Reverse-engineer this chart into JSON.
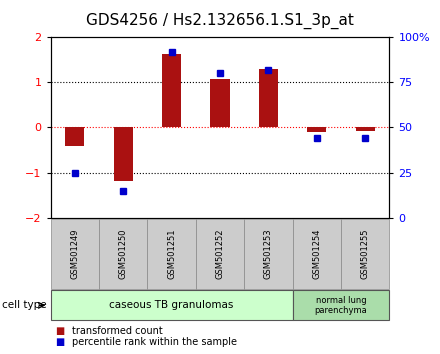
{
  "title": "GDS4256 / Hs2.132656.1.S1_3p_at",
  "samples": [
    "GSM501249",
    "GSM501250",
    "GSM501251",
    "GSM501252",
    "GSM501253",
    "GSM501254",
    "GSM501255"
  ],
  "transformed_counts": [
    -0.42,
    -1.18,
    1.62,
    1.08,
    1.3,
    -0.1,
    -0.07
  ],
  "percentile_ranks": [
    25,
    15,
    92,
    80,
    82,
    44,
    44
  ],
  "bar_color": "#aa1111",
  "dot_color": "#0000cc",
  "ylim_left": [
    -2,
    2
  ],
  "ylim_right": [
    0,
    100
  ],
  "yticks_left": [
    -2,
    -1,
    0,
    1,
    2
  ],
  "yticks_right": [
    0,
    25,
    50,
    75,
    100
  ],
  "yticklabels_right": [
    "0",
    "25",
    "50",
    "75",
    "100%"
  ],
  "group1_n": 5,
  "group2_n": 2,
  "group1_label": "caseous TB granulomas",
  "group2_label": "normal lung\nparenchyma",
  "group1_color": "#ccffcc",
  "group2_color": "#aaddaa",
  "cell_type_label": "cell type",
  "legend_bar_label": "transformed count",
  "legend_dot_label": "percentile rank within the sample",
  "bg_color": "#ffffff",
  "plot_bg": "#ffffff",
  "title_fontsize": 11,
  "tick_fontsize": 8,
  "label_fontsize": 7,
  "xlabels_bg": "#cccccc",
  "bar_width": 0.4
}
